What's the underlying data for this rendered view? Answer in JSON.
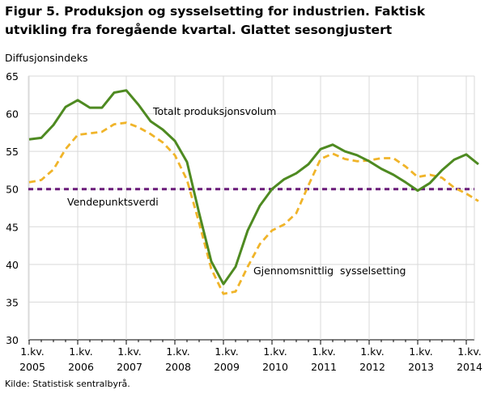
{
  "header": {
    "title": "Figur 5. Produksjon og sysselsetting for industrien. Faktisk utvikling fra foregående kvartal. Glattet sesongjustert"
  },
  "footer": {
    "source": "Kilde: Statistisk sentralbyrå."
  },
  "chart_data": {
    "type": "line",
    "title": "Figur 5. Produksjon og sysselsetting for industrien. Faktisk utvikling fra foregående kvartal. Glattet sesongjustert",
    "ylabel": "Diffusjonsindeks",
    "xlabel": "",
    "ylim": [
      30,
      65
    ],
    "yticks": [
      30,
      35,
      40,
      45,
      50,
      55,
      60,
      65
    ],
    "grid": true,
    "xticks": [
      {
        "line1": "1.kv.",
        "line2": "2005"
      },
      {
        "line1": "1.kv.",
        "line2": "2006"
      },
      {
        "line1": "1.kv.",
        "line2": "2007"
      },
      {
        "line1": "1.kv.",
        "line2": "2008"
      },
      {
        "line1": "1.kv.",
        "line2": "2009"
      },
      {
        "line1": "1.kv.",
        "line2": "2010"
      },
      {
        "line1": "1.kv.",
        "line2": "2011"
      },
      {
        "line1": "1.kv.",
        "line2": "2012"
      },
      {
        "line1": "1.kv.",
        "line2": "2013"
      },
      {
        "line1": "1.kv.",
        "line2": "2014"
      }
    ],
    "x": [
      "2005K1",
      "2005K2",
      "2005K3",
      "2005K4",
      "2006K1",
      "2006K2",
      "2006K3",
      "2006K4",
      "2007K1",
      "2007K2",
      "2007K3",
      "2007K4",
      "2008K1",
      "2008K2",
      "2008K3",
      "2008K4",
      "2009K1",
      "2009K2",
      "2009K3",
      "2009K4",
      "2010K1",
      "2010K2",
      "2010K3",
      "2010K4",
      "2011K1",
      "2011K2",
      "2011K3",
      "2011K4",
      "2012K1",
      "2012K2",
      "2012K3",
      "2012K4",
      "2013K1",
      "2013K2",
      "2013K3",
      "2013K4",
      "2014K1",
      "2014K2"
    ],
    "series": [
      {
        "name": "Totalt produksjonsvolum",
        "color": "#4e8a21",
        "style": "solid",
        "values": [
          56.6,
          56.8,
          58.5,
          60.9,
          61.8,
          60.8,
          60.8,
          62.8,
          63.1,
          61.2,
          59.0,
          57.9,
          56.4,
          53.6,
          46.8,
          40.4,
          37.4,
          39.7,
          44.5,
          47.8,
          50.0,
          51.3,
          52.1,
          53.3,
          55.3,
          55.9,
          55.0,
          54.5,
          53.7,
          52.7,
          51.9,
          50.9,
          49.8,
          50.8,
          52.5,
          53.9,
          54.6,
          53.3
        ]
      },
      {
        "name": "Gjennomsnittlig  sysselsetting",
        "color": "#f0b429",
        "style": "dashed",
        "values": [
          50.9,
          51.2,
          52.6,
          55.3,
          57.2,
          57.4,
          57.6,
          58.6,
          58.8,
          58.2,
          57.3,
          56.2,
          54.5,
          51.2,
          45.5,
          39.4,
          36.1,
          36.4,
          39.7,
          42.7,
          44.5,
          45.3,
          46.8,
          50.5,
          54.0,
          54.7,
          54.0,
          53.7,
          53.8,
          54.1,
          54.1,
          53.0,
          51.6,
          51.9,
          51.5,
          50.2,
          49.4,
          48.4
        ]
      },
      {
        "name": "Vendepunktsverdi",
        "color": "#6a1b7a",
        "style": "dashed",
        "values": [
          50,
          50,
          50,
          50,
          50,
          50,
          50,
          50,
          50,
          50,
          50,
          50,
          50,
          50,
          50,
          50,
          50,
          50,
          50,
          50,
          50,
          50,
          50,
          50,
          50,
          50,
          50,
          50,
          50,
          50,
          50,
          50,
          50,
          50,
          50,
          50,
          50,
          50
        ]
      }
    ],
    "annotations": [
      {
        "text": "Totalt produksjonsvolum",
        "series": 0
      },
      {
        "text": "Vendepunktsverdi",
        "series": 2
      },
      {
        "text": "Gjennomsnittlig  sysselsetting",
        "series": 1
      }
    ]
  }
}
